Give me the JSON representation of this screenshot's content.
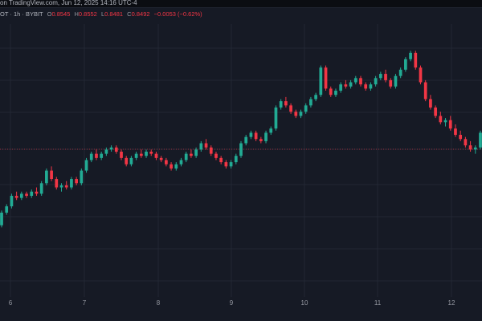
{
  "header": {
    "published": "on TradingView.com, Jun 12, 2025 14:16 UTC-4"
  },
  "legend": {
    "symbol": "OT · 1h · BYBIT",
    "o_key": "O",
    "o_val": "0.8545",
    "h_key": "H",
    "h_val": "0.8552",
    "l_key": "L",
    "l_val": "0.8481",
    "c_key": "C",
    "c_val": "0.8492",
    "change": "−0.0053 (−0.62%)"
  },
  "colors": {
    "background": "#161a25",
    "grid": "#222734",
    "up": "#22ab94",
    "down": "#f23645",
    "text": "#9598a1",
    "price_line": "#f23645"
  },
  "chart_data": {
    "type": "candlestick",
    "x_ticks": [
      "6",
      "7",
      "8",
      "9",
      "10",
      "11",
      "12"
    ],
    "y_range": [
      0.0,
      1.0
    ],
    "price_line_level": 0.59,
    "candles": [
      [
        0.15,
        0.22,
        0.14,
        0.21
      ],
      [
        0.21,
        0.25,
        0.2,
        0.24
      ],
      [
        0.24,
        0.3,
        0.23,
        0.29
      ],
      [
        0.29,
        0.31,
        0.27,
        0.28
      ],
      [
        0.28,
        0.31,
        0.27,
        0.3
      ],
      [
        0.3,
        0.31,
        0.28,
        0.29
      ],
      [
        0.29,
        0.32,
        0.28,
        0.31
      ],
      [
        0.31,
        0.33,
        0.29,
        0.3
      ],
      [
        0.3,
        0.36,
        0.29,
        0.35
      ],
      [
        0.35,
        0.42,
        0.34,
        0.41
      ],
      [
        0.41,
        0.43,
        0.36,
        0.37
      ],
      [
        0.37,
        0.38,
        0.32,
        0.33
      ],
      [
        0.33,
        0.35,
        0.31,
        0.34
      ],
      [
        0.34,
        0.36,
        0.32,
        0.33
      ],
      [
        0.33,
        0.38,
        0.32,
        0.37
      ],
      [
        0.37,
        0.38,
        0.34,
        0.35
      ],
      [
        0.35,
        0.42,
        0.34,
        0.41
      ],
      [
        0.41,
        0.47,
        0.4,
        0.46
      ],
      [
        0.46,
        0.5,
        0.45,
        0.49
      ],
      [
        0.49,
        0.51,
        0.46,
        0.47
      ],
      [
        0.47,
        0.5,
        0.46,
        0.49
      ],
      [
        0.49,
        0.52,
        0.48,
        0.51
      ],
      [
        0.51,
        0.53,
        0.5,
        0.52
      ],
      [
        0.52,
        0.53,
        0.49,
        0.5
      ],
      [
        0.5,
        0.51,
        0.46,
        0.47
      ],
      [
        0.47,
        0.48,
        0.43,
        0.44
      ],
      [
        0.44,
        0.48,
        0.43,
        0.47
      ],
      [
        0.47,
        0.5,
        0.46,
        0.49
      ],
      [
        0.49,
        0.51,
        0.47,
        0.48
      ],
      [
        0.48,
        0.51,
        0.47,
        0.5
      ],
      [
        0.5,
        0.51,
        0.48,
        0.49
      ],
      [
        0.49,
        0.5,
        0.46,
        0.47
      ],
      [
        0.47,
        0.48,
        0.45,
        0.46
      ],
      [
        0.46,
        0.47,
        0.43,
        0.44
      ],
      [
        0.44,
        0.45,
        0.41,
        0.42
      ],
      [
        0.42,
        0.45,
        0.41,
        0.44
      ],
      [
        0.44,
        0.47,
        0.43,
        0.46
      ],
      [
        0.46,
        0.5,
        0.45,
        0.49
      ],
      [
        0.49,
        0.51,
        0.47,
        0.48
      ],
      [
        0.48,
        0.52,
        0.47,
        0.51
      ],
      [
        0.51,
        0.55,
        0.5,
        0.54
      ],
      [
        0.54,
        0.56,
        0.51,
        0.52
      ],
      [
        0.52,
        0.53,
        0.48,
        0.49
      ],
      [
        0.49,
        0.5,
        0.46,
        0.47
      ],
      [
        0.47,
        0.48,
        0.44,
        0.45
      ],
      [
        0.45,
        0.46,
        0.42,
        0.43
      ],
      [
        0.43,
        0.46,
        0.42,
        0.45
      ],
      [
        0.45,
        0.49,
        0.44,
        0.48
      ],
      [
        0.48,
        0.55,
        0.47,
        0.54
      ],
      [
        0.54,
        0.58,
        0.53,
        0.57
      ],
      [
        0.57,
        0.6,
        0.56,
        0.59
      ],
      [
        0.59,
        0.6,
        0.55,
        0.56
      ],
      [
        0.56,
        0.57,
        0.54,
        0.55
      ],
      [
        0.55,
        0.6,
        0.54,
        0.59
      ],
      [
        0.59,
        0.62,
        0.58,
        0.61
      ],
      [
        0.61,
        0.72,
        0.6,
        0.71
      ],
      [
        0.71,
        0.75,
        0.7,
        0.74
      ],
      [
        0.74,
        0.76,
        0.71,
        0.72
      ],
      [
        0.72,
        0.73,
        0.68,
        0.69
      ],
      [
        0.69,
        0.7,
        0.66,
        0.67
      ],
      [
        0.67,
        0.7,
        0.66,
        0.69
      ],
      [
        0.69,
        0.73,
        0.68,
        0.72
      ],
      [
        0.72,
        0.76,
        0.71,
        0.75
      ],
      [
        0.75,
        0.78,
        0.74,
        0.77
      ],
      [
        0.77,
        0.91,
        0.76,
        0.9
      ],
      [
        0.9,
        0.91,
        0.79,
        0.8
      ],
      [
        0.8,
        0.81,
        0.76,
        0.77
      ],
      [
        0.77,
        0.8,
        0.76,
        0.79
      ],
      [
        0.79,
        0.83,
        0.78,
        0.82
      ],
      [
        0.82,
        0.84,
        0.8,
        0.81
      ],
      [
        0.81,
        0.84,
        0.8,
        0.83
      ],
      [
        0.83,
        0.86,
        0.82,
        0.85
      ],
      [
        0.85,
        0.86,
        0.81,
        0.82
      ],
      [
        0.82,
        0.83,
        0.79,
        0.8
      ],
      [
        0.8,
        0.83,
        0.79,
        0.82
      ],
      [
        0.82,
        0.86,
        0.81,
        0.85
      ],
      [
        0.85,
        0.88,
        0.84,
        0.87
      ],
      [
        0.87,
        0.89,
        0.83,
        0.84
      ],
      [
        0.84,
        0.85,
        0.8,
        0.81
      ],
      [
        0.81,
        0.87,
        0.8,
        0.86
      ],
      [
        0.86,
        0.9,
        0.85,
        0.89
      ],
      [
        0.89,
        0.95,
        0.88,
        0.94
      ],
      [
        0.94,
        0.98,
        0.93,
        0.97
      ],
      [
        0.97,
        0.98,
        0.89,
        0.9
      ],
      [
        0.9,
        0.91,
        0.82,
        0.83
      ],
      [
        0.83,
        0.84,
        0.74,
        0.75
      ],
      [
        0.75,
        0.77,
        0.7,
        0.71
      ],
      [
        0.71,
        0.72,
        0.66,
        0.67
      ],
      [
        0.67,
        0.69,
        0.63,
        0.64
      ],
      [
        0.64,
        0.66,
        0.62,
        0.65
      ],
      [
        0.65,
        0.67,
        0.6,
        0.61
      ],
      [
        0.61,
        0.63,
        0.57,
        0.58
      ],
      [
        0.58,
        0.6,
        0.55,
        0.56
      ],
      [
        0.56,
        0.57,
        0.52,
        0.53
      ],
      [
        0.53,
        0.55,
        0.5,
        0.51
      ],
      [
        0.51,
        0.53,
        0.49,
        0.52
      ],
      [
        0.52,
        0.6,
        0.51,
        0.59
      ]
    ]
  }
}
